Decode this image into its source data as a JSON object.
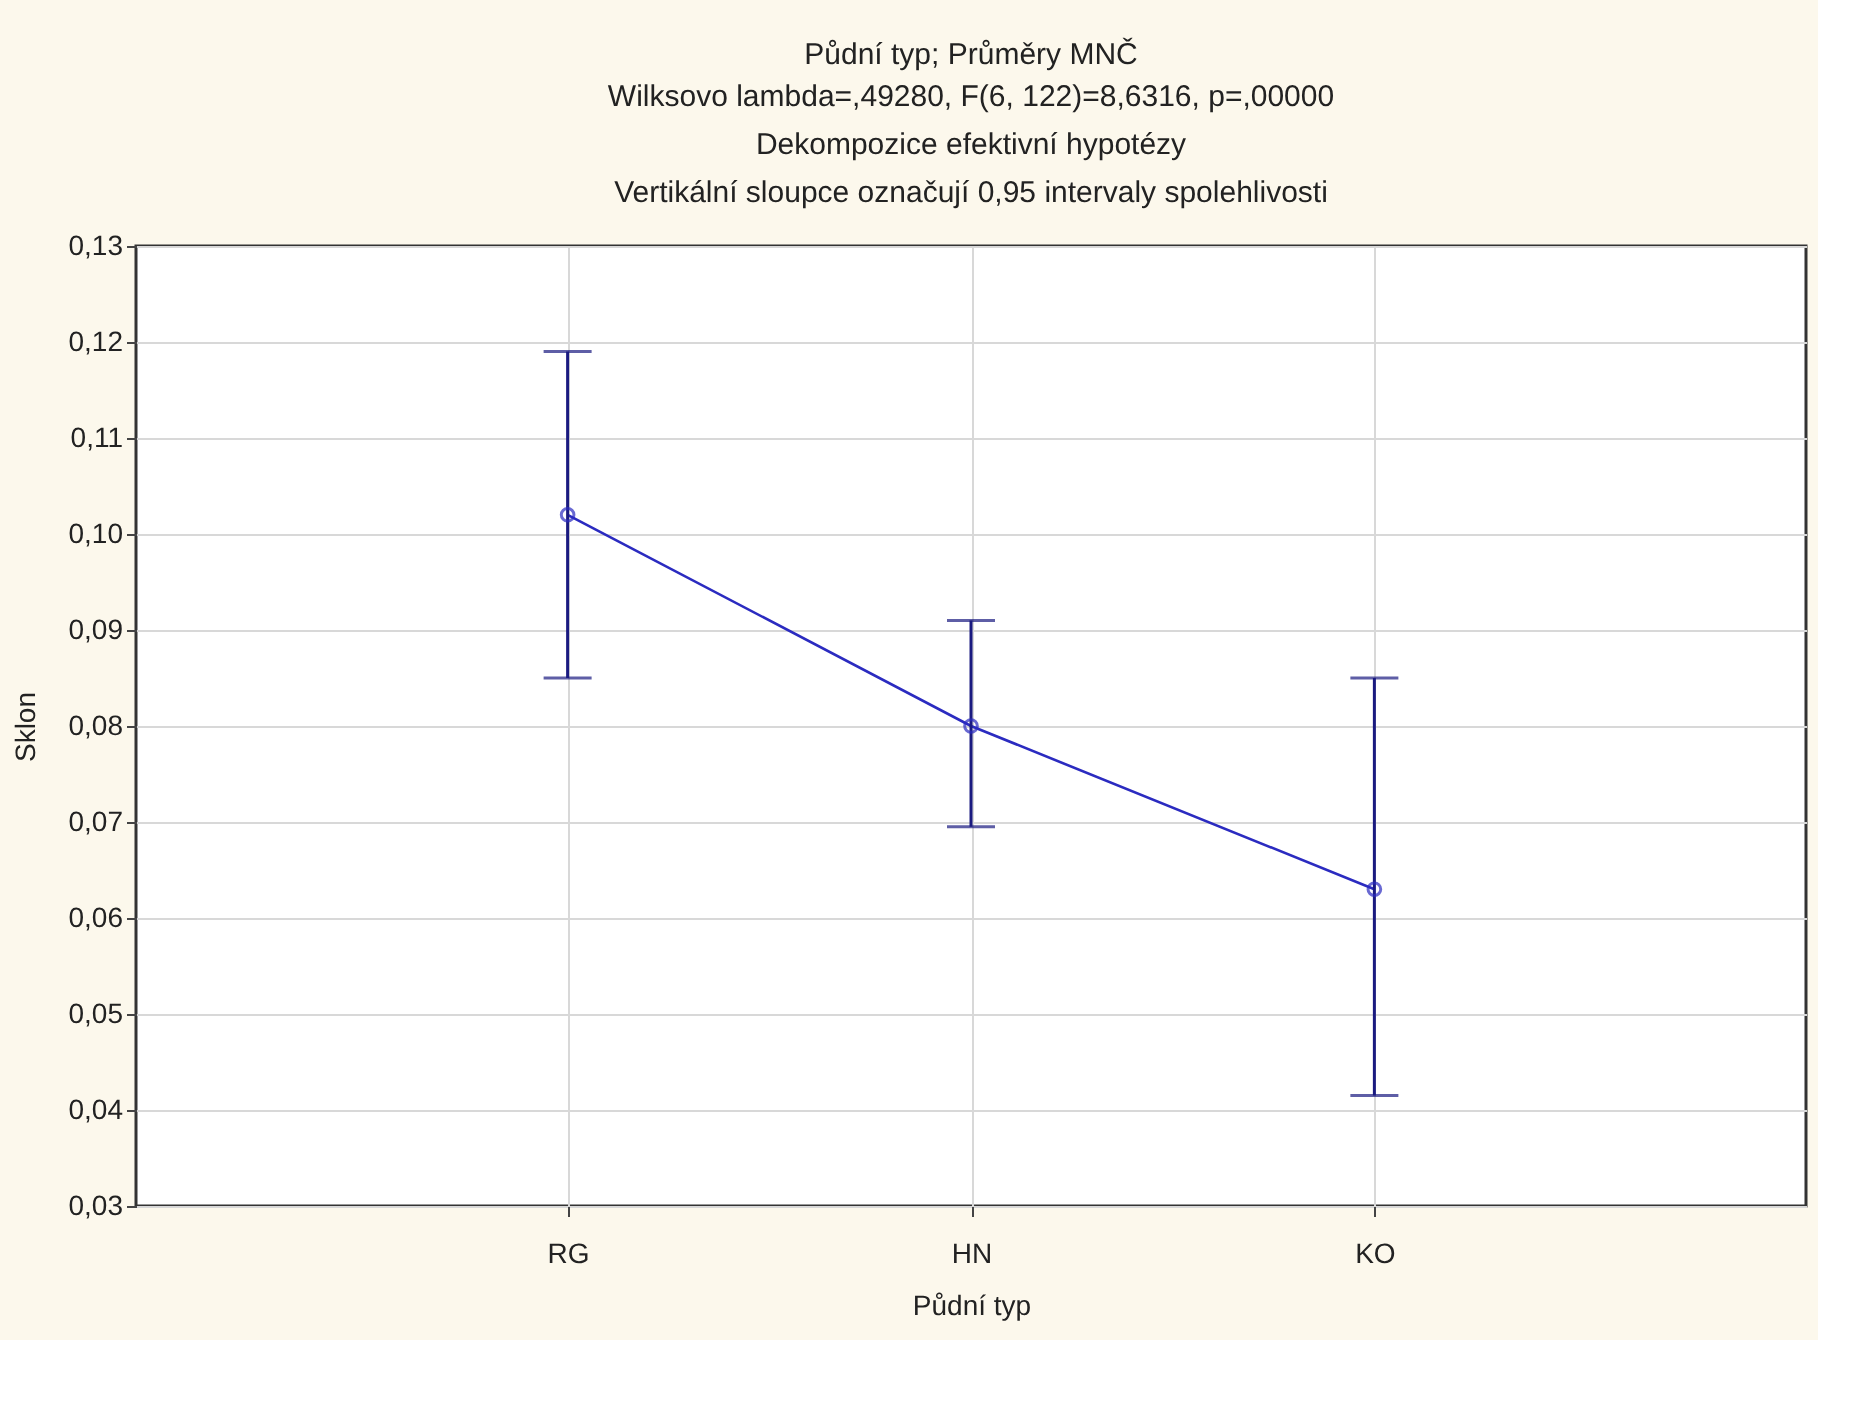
{
  "chart_data": {
    "type": "line",
    "title": "Půdní typ; Průměry MNČ",
    "subtitle": "Wilksovo lambda=,49280, F(6, 122)=8,6316, p=,00000\nDekompozice efektivní hypotézy\nVertikální sloupce označují 0,95 intervaly spolehlivosti",
    "xlabel": "Půdní typ",
    "ylabel": "Sklon",
    "categories": [
      "RG",
      "HN",
      "KO"
    ],
    "series": [
      {
        "color": "#2b2bc0",
        "values": [
          0.102,
          0.08,
          0.063
        ],
        "errors": [
          [
            0.085,
            0.119
          ],
          [
            0.0695,
            0.091
          ],
          [
            0.0415,
            0.085
          ]
        ]
      }
    ],
    "ylim": [
      0.03,
      0.13
    ],
    "yticks": [
      {
        "value": 0.03,
        "label": "0,03"
      },
      {
        "value": 0.04,
        "label": "0,04"
      },
      {
        "value": 0.05,
        "label": "0,05"
      },
      {
        "value": 0.06,
        "label": "0,06"
      },
      {
        "value": 0.07,
        "label": "0,07"
      },
      {
        "value": 0.08,
        "label": "0,08"
      },
      {
        "value": 0.09,
        "label": "0,09"
      },
      {
        "value": 0.1,
        "label": "0,10"
      },
      {
        "value": 0.11,
        "label": "0,11"
      },
      {
        "value": 0.12,
        "label": "0,12"
      },
      {
        "value": 0.13,
        "label": "0,13"
      }
    ],
    "grid": true,
    "marker": "circle",
    "line_style": "solid"
  }
}
